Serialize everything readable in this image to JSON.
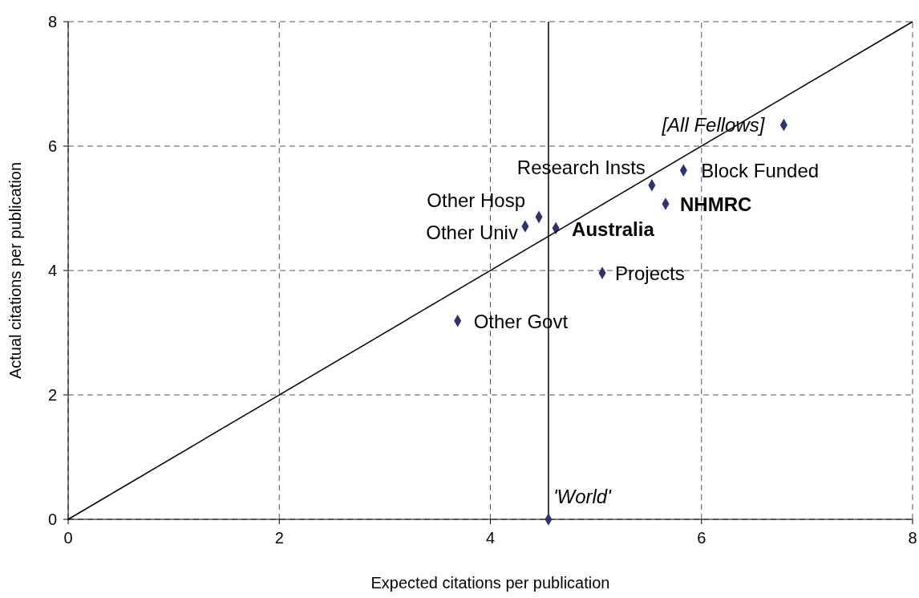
{
  "chart_data": {
    "type": "scatter",
    "xlabel": "Expected citations per publication",
    "ylabel": "Actual citations per publication",
    "xlim": [
      0,
      8
    ],
    "ylim": [
      0,
      8
    ],
    "xticks": [
      0,
      2,
      4,
      6,
      8
    ],
    "yticks": [
      0,
      2,
      4,
      6,
      8
    ],
    "grid": true,
    "series": [
      {
        "color": "#2e3370",
        "marker": "diamond",
        "x": [
          6.78,
          5.83,
          5.53,
          5.66,
          4.46,
          4.33,
          4.62,
          5.06,
          3.69,
          4.55
        ],
        "values": [
          6.34,
          5.61,
          5.37,
          5.07,
          4.86,
          4.71,
          4.68,
          3.96,
          3.19,
          0
        ]
      },
      {
        "type": "line",
        "color": "#000000",
        "marker": "none",
        "line_style": "solid",
        "x": [
          0,
          8
        ],
        "values": [
          0,
          8
        ]
      }
    ],
    "ref_lines": [
      {
        "axis": "x",
        "value": 4.55,
        "color": "#000000",
        "line_style": "solid"
      }
    ],
    "annotations": [
      {
        "text": "[All Fellows]",
        "x": 6.78,
        "y": 6.34
      },
      {
        "text": "Block Funded",
        "x": 5.83,
        "y": 5.61
      },
      {
        "text": "Research Insts",
        "x": 5.53,
        "y": 5.37
      },
      {
        "text": "NHMRC",
        "x": 5.66,
        "y": 5.07
      },
      {
        "text": "Other Hosp",
        "x": 4.46,
        "y": 4.86
      },
      {
        "text": "Other Univ",
        "x": 4.33,
        "y": 4.71
      },
      {
        "text": "Australia",
        "x": 4.62,
        "y": 4.68
      },
      {
        "text": "Projects",
        "x": 5.06,
        "y": 3.96
      },
      {
        "text": "Other Govt",
        "x": 3.69,
        "y": 3.19
      },
      {
        "text": "'World'",
        "x": 4.55,
        "y": 0
      }
    ]
  }
}
